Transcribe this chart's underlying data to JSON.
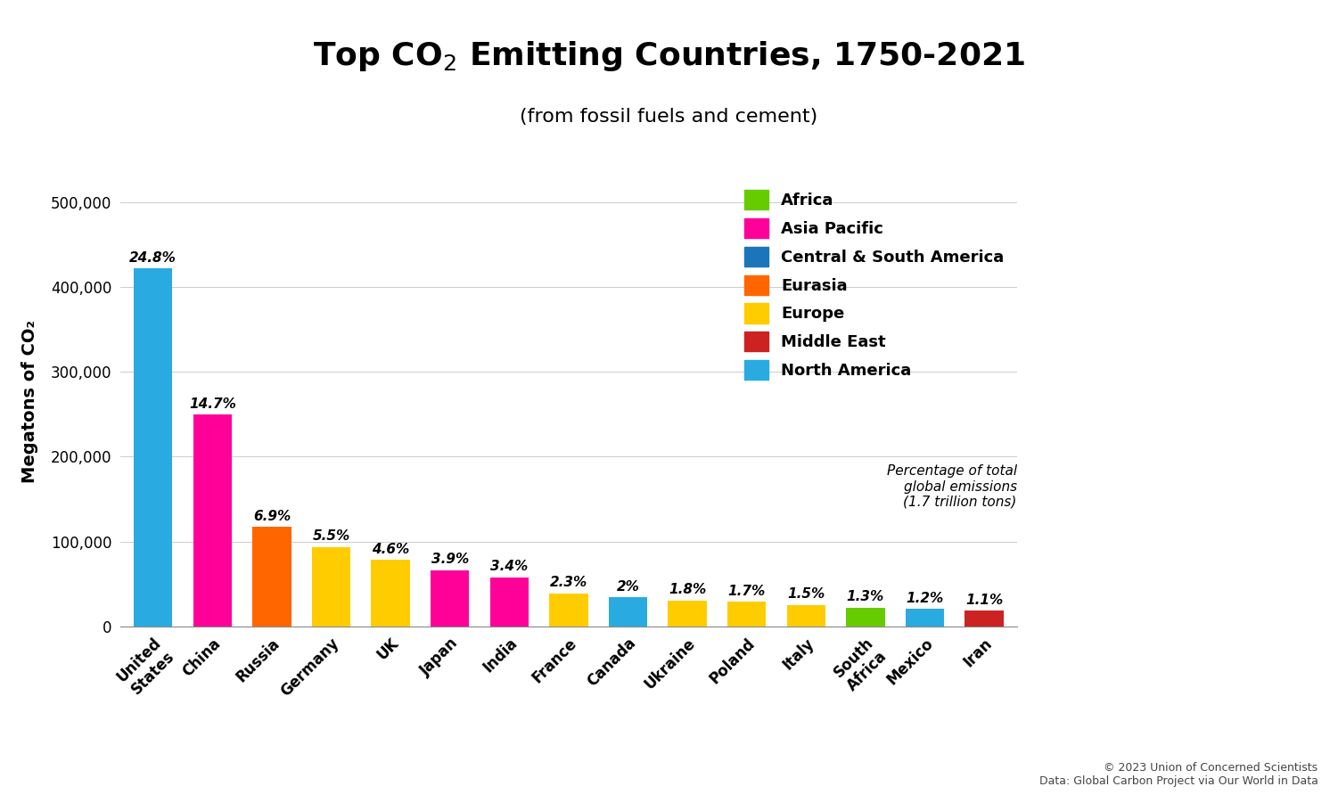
{
  "subtitle": "(from fossil fuels and cement)",
  "ylabel": "Megatons of CO₂",
  "countries": [
    "United\nStates",
    "China",
    "Russia",
    "Germany",
    "UK",
    "Japan",
    "India",
    "France",
    "Canada",
    "Ukraine",
    "Poland",
    "Italy",
    "South\nAfrica",
    "Mexico",
    "Iran"
  ],
  "values": [
    421600,
    249900,
    117300,
    93500,
    78200,
    66300,
    57800,
    39100,
    34000,
    30600,
    28900,
    25500,
    22100,
    20400,
    18700
  ],
  "percentages": [
    "24.8%",
    "14.7%",
    "6.9%",
    "5.5%",
    "4.6%",
    "3.9%",
    "3.4%",
    "2.3%",
    "2%",
    "1.8%",
    "1.7%",
    "1.5%",
    "1.3%",
    "1.2%",
    "1.1%"
  ],
  "colors": [
    "#29ABE2",
    "#FF0099",
    "#FF6600",
    "#FFCC00",
    "#FFCC00",
    "#FF0099",
    "#FF0099",
    "#FFCC00",
    "#29ABE2",
    "#FFCC00",
    "#FFCC00",
    "#FFCC00",
    "#66CC00",
    "#29ABE2",
    "#CC2222"
  ],
  "legend_items": [
    {
      "label": "Africa",
      "color": "#66CC00"
    },
    {
      "label": "Asia Pacific",
      "color": "#FF0099"
    },
    {
      "label": "Central & South America",
      "color": "#1B75BB"
    },
    {
      "label": "Eurasia",
      "color": "#FF6600"
    },
    {
      "label": "Europe",
      "color": "#FFCC00"
    },
    {
      "label": "Middle East",
      "color": "#CC2222"
    },
    {
      "label": "North America",
      "color": "#29ABE2"
    }
  ],
  "legend_note": "Percentage of total\nglobal emissions\n(1.7 trillion tons)",
  "footnote": "© 2023 Union of Concerned Scientists\nData: Global Carbon Project via Our World in Data",
  "ylim": [
    0,
    530000
  ],
  "yticks": [
    0,
    100000,
    200000,
    300000,
    400000,
    500000
  ],
  "background_color": "#FFFFFF"
}
